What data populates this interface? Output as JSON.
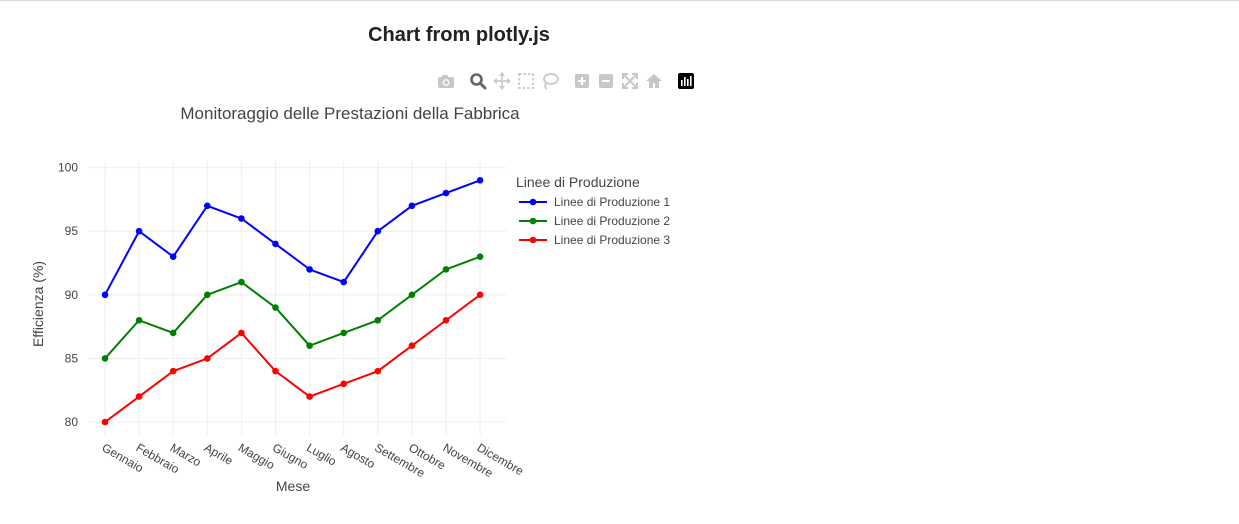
{
  "page": {
    "title": "Chart from plotly.js"
  },
  "modebar": {
    "buttons": [
      {
        "icon": "camera-icon",
        "label": "Download plot as a png"
      },
      {
        "icon": "zoom-icon",
        "label": "Zoom"
      },
      {
        "icon": "pan-icon",
        "label": "Pan"
      },
      {
        "icon": "box-select-icon",
        "label": "Box Select"
      },
      {
        "icon": "lasso-select-icon",
        "label": "Lasso Select"
      },
      {
        "icon": "zoom-in-icon",
        "label": "Zoom in"
      },
      {
        "icon": "zoom-out-icon",
        "label": "Zoom out"
      },
      {
        "icon": "autoscale-icon",
        "label": "Autoscale"
      },
      {
        "icon": "home-icon",
        "label": "Reset axes"
      },
      {
        "icon": "plotly-logo-icon",
        "label": "Produced with Plotly"
      }
    ]
  },
  "chart_data": {
    "type": "line",
    "title": "Monitoraggio delle Prestazioni della Fabbrica",
    "xlabel": "Mese",
    "ylabel": "Efficienza (%)",
    "categories": [
      "Gennaio",
      "Febbraio",
      "Marzo",
      "Aprile",
      "Maggio",
      "Giugno",
      "Luglio",
      "Agosto",
      "Settembre",
      "Ottobre",
      "Novembre",
      "Dicembre"
    ],
    "ylim": [
      78.9,
      100.6
    ],
    "yticks": [
      80,
      85,
      90,
      95,
      100
    ],
    "grid": true,
    "legend": {
      "title": "Linee di Produzione",
      "position": "top-right"
    },
    "series": [
      {
        "name": "Linee di Produzione 1",
        "color": "#0000ff",
        "values": [
          90,
          95,
          93,
          97,
          96,
          94,
          92,
          91,
          95,
          97,
          98,
          99
        ]
      },
      {
        "name": "Linee di Produzione 2",
        "color": "#008000",
        "values": [
          85,
          88,
          87,
          90,
          91,
          89,
          86,
          87,
          88,
          90,
          92,
          93
        ]
      },
      {
        "name": "Linee di Produzione 3",
        "color": "#ff0000",
        "values": [
          80,
          82,
          84,
          85,
          87,
          84,
          82,
          83,
          84,
          86,
          88,
          90
        ]
      }
    ]
  }
}
